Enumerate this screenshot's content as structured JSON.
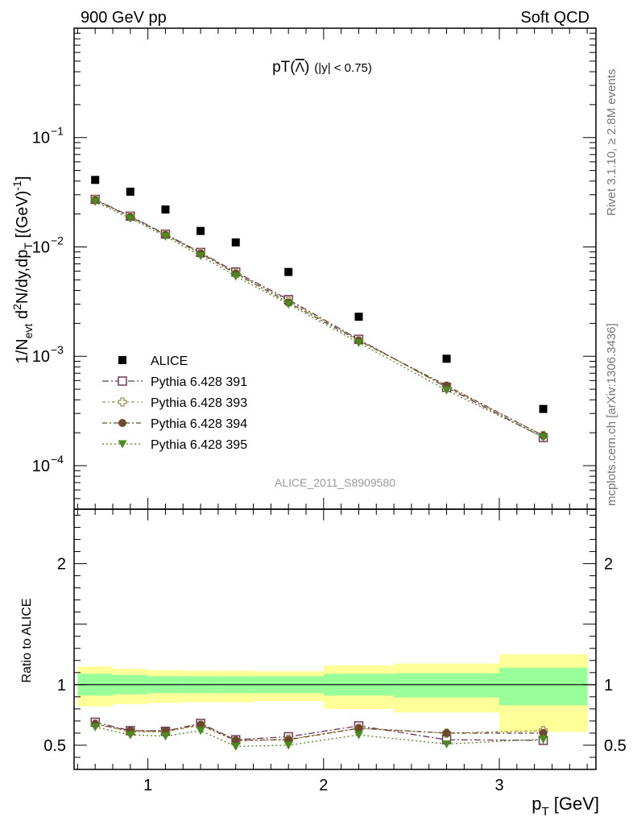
{
  "header": {
    "left": "900 GeV pp",
    "right": "Soft QCD"
  },
  "side_labels": {
    "top": "Rivet 3.1.10, ≥ 2.8M events",
    "bottom": "mcplots.cern.ch [arXiv:1306.3436]"
  },
  "colors": {
    "alice": "#000000",
    "p391": "#6e3a5a",
    "p393": "#a09050",
    "p394": "#6b4a2e",
    "p395": "#4b8a1e",
    "band_inner": "#99ff99",
    "band_outer": "#ffff99"
  },
  "chart_data": [
    {
      "type": "scatter",
      "title_main": "pT(",
      "title_particle": "Λ",
      "title_close": ")",
      "title_cut": "(|y| < 0.75)",
      "ylabel": "1/N_evt d²N/dy,dp_T [(GeV)⁻¹]",
      "ylabel_parts": {
        "a": "1/N",
        "a_sub": "evt",
        "b": " d",
        "b_sup": "2",
        "c": "N/dy,dp",
        "c_sub": "T",
        "d": " [(GeV)",
        "d_sup": "-1",
        "e": "]"
      },
      "yscale": "log",
      "ylim": [
        4e-05,
        1.0
      ],
      "xlim": [
        0.58,
        3.55
      ],
      "y_ticks": [
        {
          "value": 0.1,
          "mant": "10",
          "exp": "−1"
        },
        {
          "value": 0.01,
          "mant": "10",
          "exp": "−2"
        },
        {
          "value": 0.001,
          "mant": "10",
          "exp": "−3"
        },
        {
          "value": 0.0001,
          "mant": "10",
          "exp": "−4"
        }
      ],
      "watermark": "ALICE_2011_S8909580",
      "legend_position": "lower-left",
      "series": [
        {
          "name": "ALICE",
          "marker": "square-filled",
          "color_key": "alice",
          "x": [
            0.7,
            0.9,
            1.1,
            1.3,
            1.5,
            1.8,
            2.2,
            2.7,
            3.25
          ],
          "y": [
            0.041,
            0.032,
            0.022,
            0.014,
            0.011,
            0.0059,
            0.0023,
            0.00095,
            0.00033
          ]
        },
        {
          "name": "Pythia 6.428 391",
          "marker": "square-open",
          "color_key": "p391",
          "dash": "8,3,2,3",
          "x": [
            0.7,
            0.9,
            1.1,
            1.3,
            1.5,
            1.8,
            2.2,
            2.7,
            3.25
          ],
          "y": [
            0.0272,
            0.0191,
            0.0131,
            0.0089,
            0.0059,
            0.0033,
            0.00143,
            0.00052,
            0.000181
          ]
        },
        {
          "name": "Pythia 6.428 393",
          "marker": "cross-open",
          "color_key": "p393",
          "dash": "4,3,2,3",
          "x": [
            0.7,
            0.9,
            1.1,
            1.3,
            1.5,
            1.8,
            2.2,
            2.7,
            3.25
          ],
          "y": [
            0.027,
            0.019,
            0.013,
            0.0088,
            0.0058,
            0.0032,
            0.00141,
            0.00053,
            0.000189
          ]
        },
        {
          "name": "Pythia 6.428 394",
          "marker": "circle-filled",
          "color_key": "p394",
          "dash": "6,3,2,3",
          "x": [
            0.7,
            0.9,
            1.1,
            1.3,
            1.5,
            1.8,
            2.2,
            2.7,
            3.25
          ],
          "y": [
            0.0268,
            0.0188,
            0.0129,
            0.0087,
            0.0057,
            0.0031,
            0.00139,
            0.00054,
            0.000188
          ]
        },
        {
          "name": "Pythia 6.428 395",
          "marker": "triangle-down-filled",
          "color_key": "p395",
          "dash": "2,3",
          "x": [
            0.7,
            0.9,
            1.1,
            1.3,
            1.5,
            1.8,
            2.2,
            2.7,
            3.25
          ],
          "y": [
            0.026,
            0.0182,
            0.0125,
            0.0083,
            0.0054,
            0.003,
            0.00133,
            0.00049,
            0.000182
          ]
        }
      ]
    },
    {
      "type": "scatter",
      "ylabel": "Ratio to ALICE",
      "xlabel_main": "p",
      "xlabel_sub": "T",
      "xlabel_unit": " [GeV]",
      "ylim": [
        0.3,
        2.45
      ],
      "xlim": [
        0.58,
        3.55
      ],
      "y_ticks": [
        {
          "value": 0.5,
          "label": "0.5"
        },
        {
          "value": 1,
          "label": "1"
        },
        {
          "value": 2,
          "label": "2"
        }
      ],
      "x_ticks": [
        {
          "value": 1,
          "label": "1"
        },
        {
          "value": 2,
          "label": "2"
        },
        {
          "value": 3,
          "label": "3"
        }
      ],
      "reference_line": 1,
      "bands": [
        {
          "x0": 0.6,
          "x1": 0.8,
          "inner": [
            0.91,
            1.09
          ],
          "outer": [
            0.82,
            1.15
          ]
        },
        {
          "x0": 0.8,
          "x1": 1.0,
          "inner": [
            0.92,
            1.08
          ],
          "outer": [
            0.84,
            1.13
          ]
        },
        {
          "x0": 1.0,
          "x1": 1.2,
          "inner": [
            0.93,
            1.07
          ],
          "outer": [
            0.85,
            1.12
          ]
        },
        {
          "x0": 1.2,
          "x1": 1.4,
          "inner": [
            0.93,
            1.07
          ],
          "outer": [
            0.855,
            1.115
          ]
        },
        {
          "x0": 1.4,
          "x1": 1.6,
          "inner": [
            0.93,
            1.07
          ],
          "outer": [
            0.855,
            1.115
          ]
        },
        {
          "x0": 1.6,
          "x1": 2.0,
          "inner": [
            0.93,
            1.07
          ],
          "outer": [
            0.865,
            1.11
          ]
        },
        {
          "x0": 2.0,
          "x1": 2.4,
          "inner": [
            0.91,
            1.09
          ],
          "outer": [
            0.8,
            1.16
          ]
        },
        {
          "x0": 2.4,
          "x1": 3.0,
          "inner": [
            0.895,
            1.095
          ],
          "outer": [
            0.77,
            1.175
          ]
        },
        {
          "x0": 3.0,
          "x1": 3.5,
          "inner": [
            0.83,
            1.14
          ],
          "outer": [
            0.61,
            1.25
          ]
        }
      ],
      "series": [
        {
          "name": "Pythia 6.428 391",
          "marker": "square-open",
          "color_key": "p391",
          "dash": "8,3,2,3",
          "x": [
            0.7,
            0.9,
            1.1,
            1.3,
            1.5,
            1.8,
            2.2,
            2.7,
            3.25
          ],
          "y": [
            0.69,
            0.62,
            0.615,
            0.68,
            0.545,
            0.57,
            0.66,
            0.545,
            0.54
          ],
          "err": [
            0.01,
            0.01,
            0.01,
            0.01,
            0.01,
            0.01,
            0.01,
            0.01,
            0.03
          ]
        },
        {
          "name": "Pythia 6.428 393",
          "marker": "cross-open",
          "color_key": "p393",
          "dash": "4,3,2,3",
          "x": [
            0.7,
            0.9,
            1.1,
            1.3,
            1.5,
            1.8,
            2.2,
            2.7,
            3.25
          ],
          "y": [
            0.675,
            0.61,
            0.61,
            0.665,
            0.535,
            0.55,
            0.64,
            0.6,
            0.62
          ],
          "err": [
            0.01,
            0.01,
            0.01,
            0.01,
            0.01,
            0.01,
            0.01,
            0.01,
            0.03
          ]
        },
        {
          "name": "Pythia 6.428 394",
          "marker": "circle-filled",
          "color_key": "p394",
          "dash": "6,3,2,3",
          "x": [
            0.7,
            0.9,
            1.1,
            1.3,
            1.5,
            1.8,
            2.2,
            2.7,
            3.25
          ],
          "y": [
            0.675,
            0.62,
            0.62,
            0.67,
            0.54,
            0.545,
            0.64,
            0.6,
            0.6
          ],
          "err": [
            0.01,
            0.01,
            0.01,
            0.01,
            0.01,
            0.01,
            0.01,
            0.01,
            0.03
          ]
        },
        {
          "name": "Pythia 6.428 395",
          "marker": "triangle-down-filled",
          "color_key": "p395",
          "dash": "2,3",
          "x": [
            0.7,
            0.9,
            1.1,
            1.3,
            1.5,
            1.8,
            2.2,
            2.7,
            3.25
          ],
          "y": [
            0.65,
            0.585,
            0.575,
            0.62,
            0.49,
            0.5,
            0.585,
            0.51,
            0.55
          ],
          "err": [
            0.01,
            0.01,
            0.01,
            0.01,
            0.01,
            0.01,
            0.01,
            0.015,
            0.04
          ]
        }
      ]
    }
  ]
}
